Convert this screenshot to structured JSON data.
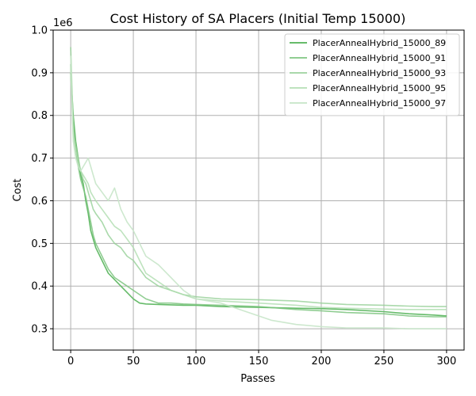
{
  "chart_data": {
    "type": "line",
    "title": "Cost History of SA Placers (Initial Temp 15000)",
    "xlabel": "Passes",
    "ylabel": "Cost",
    "y_offset_text": "1e6",
    "xlim": [
      -14,
      314
    ],
    "ylim": [
      0.25,
      1.0
    ],
    "xticks": [
      0,
      50,
      100,
      150,
      200,
      250,
      300
    ],
    "yticks": [
      0.3,
      0.4,
      0.5,
      0.6,
      0.7,
      0.8,
      0.9,
      1.0
    ],
    "xtick_labels": [
      "0",
      "50",
      "100",
      "150",
      "200",
      "250",
      "300"
    ],
    "ytick_labels": [
      "0.3",
      "0.4",
      "0.5",
      "0.6",
      "0.7",
      "0.8",
      "0.9",
      "1.0"
    ],
    "grid": true,
    "legend_position": "top-right",
    "series": [
      {
        "name": "PlacerAnnealHybrid_15000_89",
        "color": "#66bb6a",
        "opacity": 1.0,
        "x": [
          0,
          2,
          4,
          6,
          8,
          10,
          12,
          14,
          16,
          18,
          20,
          25,
          30,
          35,
          40,
          45,
          50,
          55,
          60,
          70,
          80,
          90,
          100,
          120,
          150,
          180,
          200,
          220,
          250,
          270,
          290,
          300
        ],
        "y": [
          0.9,
          0.8,
          0.74,
          0.7,
          0.66,
          0.64,
          0.6,
          0.57,
          0.53,
          0.51,
          0.49,
          0.46,
          0.43,
          0.415,
          0.4,
          0.385,
          0.37,
          0.36,
          0.358,
          0.357,
          0.356,
          0.355,
          0.355,
          0.352,
          0.35,
          0.348,
          0.347,
          0.345,
          0.34,
          0.335,
          0.332,
          0.33
        ]
      },
      {
        "name": "PlacerAnnealHybrid_15000_91",
        "color": "#7cc47f",
        "opacity": 0.85,
        "x": [
          0,
          2,
          4,
          6,
          8,
          10,
          12,
          14,
          16,
          18,
          20,
          25,
          30,
          35,
          40,
          45,
          50,
          55,
          60,
          70,
          80,
          90,
          100,
          120,
          150,
          180,
          200,
          220,
          250,
          270,
          290,
          300
        ],
        "y": [
          0.92,
          0.78,
          0.72,
          0.68,
          0.65,
          0.63,
          0.61,
          0.58,
          0.55,
          0.52,
          0.5,
          0.47,
          0.44,
          0.42,
          0.41,
          0.4,
          0.39,
          0.38,
          0.37,
          0.36,
          0.36,
          0.358,
          0.357,
          0.355,
          0.352,
          0.345,
          0.342,
          0.338,
          0.335,
          0.33,
          0.328,
          0.328
        ]
      },
      {
        "name": "PlacerAnnealHybrid_15000_93",
        "color": "#95d096",
        "opacity": 0.8,
        "x": [
          0,
          2,
          4,
          6,
          8,
          10,
          12,
          14,
          16,
          18,
          20,
          25,
          30,
          35,
          40,
          45,
          50,
          55,
          60,
          70,
          80,
          90,
          100,
          120,
          150,
          180,
          200,
          220,
          250,
          270,
          290,
          300
        ],
        "y": [
          0.96,
          0.77,
          0.73,
          0.7,
          0.67,
          0.65,
          0.64,
          0.62,
          0.6,
          0.58,
          0.57,
          0.55,
          0.52,
          0.5,
          0.49,
          0.47,
          0.46,
          0.44,
          0.42,
          0.4,
          0.39,
          0.38,
          0.375,
          0.37,
          0.368,
          0.365,
          0.36,
          0.357,
          0.355,
          0.353,
          0.352,
          0.352
        ]
      },
      {
        "name": "PlacerAnnealHybrid_15000_95",
        "color": "#aedcae",
        "opacity": 0.8,
        "x": [
          0,
          2,
          4,
          6,
          8,
          10,
          12,
          14,
          16,
          18,
          20,
          25,
          30,
          35,
          40,
          45,
          50,
          55,
          60,
          70,
          80,
          90,
          100,
          120,
          150,
          180,
          200,
          220,
          250,
          270,
          290,
          300
        ],
        "y": [
          0.91,
          0.75,
          0.72,
          0.69,
          0.67,
          0.66,
          0.65,
          0.64,
          0.62,
          0.61,
          0.6,
          0.58,
          0.56,
          0.54,
          0.53,
          0.51,
          0.49,
          0.46,
          0.43,
          0.41,
          0.39,
          0.38,
          0.37,
          0.365,
          0.36,
          0.355,
          0.35,
          0.348,
          0.346,
          0.345,
          0.345,
          0.345
        ]
      },
      {
        "name": "PlacerAnnealHybrid_15000_97",
        "color": "#c8e6c9",
        "opacity": 0.9,
        "x": [
          0,
          2,
          4,
          6,
          8,
          10,
          12,
          14,
          16,
          18,
          20,
          25,
          30,
          35,
          40,
          45,
          50,
          55,
          60,
          70,
          80,
          90,
          100,
          120,
          140,
          160,
          180,
          200,
          220,
          250,
          270,
          290,
          300
        ],
        "y": [
          0.94,
          0.74,
          0.7,
          0.68,
          0.67,
          0.68,
          0.69,
          0.7,
          0.68,
          0.66,
          0.64,
          0.62,
          0.6,
          0.63,
          0.58,
          0.55,
          0.53,
          0.5,
          0.47,
          0.45,
          0.42,
          0.39,
          0.37,
          0.36,
          0.34,
          0.32,
          0.31,
          0.305,
          0.302,
          0.302,
          0.3,
          0.3,
          0.3
        ]
      }
    ]
  }
}
